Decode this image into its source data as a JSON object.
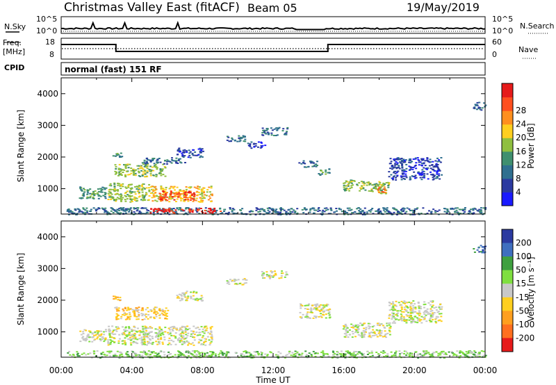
{
  "header": {
    "station": "Christmas Valley East (fitACF)",
    "beam": "Beam 05",
    "date": "19/May/2019"
  },
  "strip": {
    "nsky_label": "N.Sky",
    "nsearch_label": "N.Search",
    "noise_ticks": [
      "10^5",
      "10^0"
    ],
    "freq_label_line1": "Freq.",
    "freq_label_line2": "[MHz]",
    "freq_ticks": [
      "18",
      "8"
    ],
    "nave_label": "Nave",
    "nave_ticks": [
      "60",
      "0"
    ],
    "cpid_label": "CPID",
    "cpid_text": "normal (fast) 151 RF"
  },
  "colors": {
    "power": [
      "#1a1aff",
      "#2b3aa0",
      "#2f6f8f",
      "#3f8f6f",
      "#8fbf3f",
      "#ffcf1f",
      "#ff8f1f",
      "#ff4f1f",
      "#e61a1a"
    ],
    "velocity": [
      "#2b3aa0",
      "#3f6fbf",
      "#3fa03f",
      "#7fdf3f",
      "#c8c8c8",
      "#ffcf1f",
      "#ff9f1f",
      "#ff6f1f",
      "#e61a1a"
    ]
  },
  "chart_data": [
    {
      "type": "heatmap",
      "name": "power",
      "ylabel": "Slant Range [km]",
      "yticks": [
        "1000",
        "2000",
        "3000",
        "4000"
      ],
      "ylim": [
        200,
        4500
      ],
      "xlim": [
        "00:00",
        "24:00"
      ],
      "colorbar_label": "Power [dB]",
      "colorbar_ticks": [
        "4",
        "8",
        "12",
        "16",
        "20",
        "24",
        "28"
      ],
      "regions": [
        {
          "t0": 0.3,
          "t1": 24.0,
          "r0": 200,
          "r1": 420,
          "level": 2
        },
        {
          "t0": 1.0,
          "t1": 2.5,
          "r0": 700,
          "r1": 1100,
          "level": 3
        },
        {
          "t0": 2.6,
          "t1": 5.0,
          "r0": 600,
          "r1": 1200,
          "level": 4
        },
        {
          "t0": 5.0,
          "t1": 8.5,
          "r0": 600,
          "r1": 1100,
          "level": 5
        },
        {
          "t0": 5.5,
          "t1": 7.5,
          "r0": 650,
          "r1": 950,
          "level": 7
        },
        {
          "t0": 5.0,
          "t1": 9.0,
          "r0": 250,
          "r1": 400,
          "level": 8
        },
        {
          "t0": 3.0,
          "t1": 6.0,
          "r0": 1400,
          "r1": 1800,
          "level": 4
        },
        {
          "t0": 2.9,
          "t1": 3.4,
          "r0": 1950,
          "r1": 2150,
          "level": 3
        },
        {
          "t0": 4.5,
          "t1": 7.0,
          "r0": 1800,
          "r1": 2000,
          "level": 2
        },
        {
          "t0": 6.5,
          "t1": 8.0,
          "r0": 2000,
          "r1": 2300,
          "level": 1
        },
        {
          "t0": 9.3,
          "t1": 10.5,
          "r0": 2500,
          "r1": 2700,
          "level": 2
        },
        {
          "t0": 10.5,
          "t1": 11.5,
          "r0": 2300,
          "r1": 2500,
          "level": 1
        },
        {
          "t0": 11.3,
          "t1": 12.8,
          "r0": 2700,
          "r1": 2950,
          "level": 2
        },
        {
          "t0": 13.4,
          "t1": 14.5,
          "r0": 1700,
          "r1": 1900,
          "level": 2
        },
        {
          "t0": 14.5,
          "t1": 15.2,
          "r0": 1450,
          "r1": 1650,
          "level": 3
        },
        {
          "t0": 15.9,
          "t1": 17.2,
          "r0": 950,
          "r1": 1300,
          "level": 4
        },
        {
          "t0": 17.2,
          "t1": 18.6,
          "r0": 850,
          "r1": 1250,
          "level": 4
        },
        {
          "t0": 17.8,
          "t1": 18.3,
          "r0": 900,
          "r1": 1100,
          "level": 6
        },
        {
          "t0": 18.5,
          "t1": 21.5,
          "r0": 1300,
          "r1": 2000,
          "level": 1
        },
        {
          "t0": 23.3,
          "t1": 24.0,
          "r0": 3500,
          "r1": 3750,
          "level": 2
        }
      ]
    },
    {
      "type": "heatmap",
      "name": "velocity",
      "ylabel": "Slant Range [km]",
      "xlabel": "Time UT",
      "xticks": [
        "00:00",
        "04:00",
        "08:00",
        "12:00",
        "16:00",
        "20:00",
        "00:00"
      ],
      "yticks": [
        "1000",
        "2000",
        "3000",
        "4000"
      ],
      "ylim": [
        200,
        4500
      ],
      "xlim": [
        "00:00",
        "24:00"
      ],
      "colorbar_label": "Velocity [m s⁻¹]",
      "colorbar_ticks": [
        "200",
        "100",
        "50",
        "15",
        "-15",
        "-50",
        "-100",
        "-200"
      ],
      "regions": [
        {
          "t0": 0.3,
          "t1": 24.0,
          "r0": 200,
          "r1": 420,
          "level": 3
        },
        {
          "t0": 1.0,
          "t1": 2.5,
          "r0": 700,
          "r1": 1100,
          "level": 4
        },
        {
          "t0": 2.6,
          "t1": 8.5,
          "r0": 600,
          "r1": 1200,
          "level": 4
        },
        {
          "t0": 3.0,
          "t1": 6.0,
          "r0": 1400,
          "r1": 1800,
          "level": 5
        },
        {
          "t0": 2.9,
          "t1": 3.4,
          "r0": 1950,
          "r1": 2150,
          "level": 5
        },
        {
          "t0": 6.5,
          "t1": 8.0,
          "r0": 2000,
          "r1": 2300,
          "level": 4
        },
        {
          "t0": 9.3,
          "t1": 10.5,
          "r0": 2500,
          "r1": 2700,
          "level": 4
        },
        {
          "t0": 11.3,
          "t1": 12.8,
          "r0": 2700,
          "r1": 2950,
          "level": 4
        },
        {
          "t0": 13.4,
          "t1": 15.2,
          "r0": 1450,
          "r1": 1900,
          "level": 4
        },
        {
          "t0": 15.9,
          "t1": 18.6,
          "r0": 850,
          "r1": 1300,
          "level": 4
        },
        {
          "t0": 18.5,
          "t1": 21.5,
          "r0": 1300,
          "r1": 2000,
          "level": 4
        },
        {
          "t0": 23.3,
          "t1": 24.0,
          "r0": 3500,
          "r1": 3750,
          "level": 1
        }
      ]
    }
  ]
}
